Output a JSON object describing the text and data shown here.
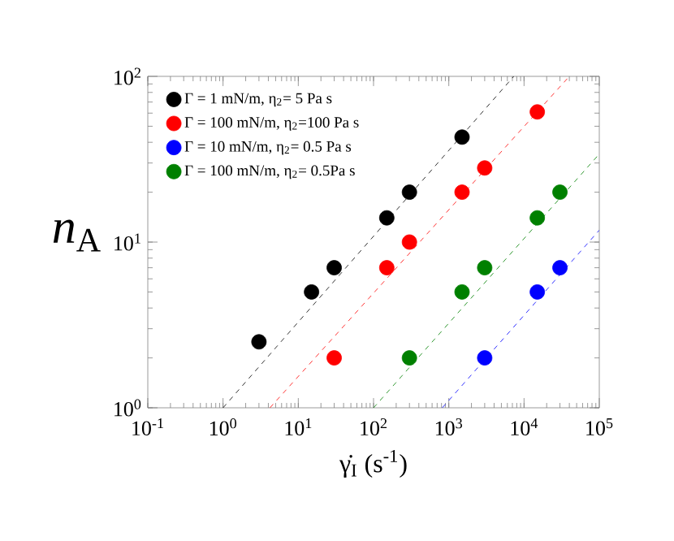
{
  "chart_data": {
    "type": "scatter",
    "xlabel": "γ̇$_{I}$ (s$^{-1}$)",
    "ylabel": "*n*$_{A}$",
    "log": "xy",
    "xlim": [
      0.1,
      100000
    ],
    "ylim": [
      1,
      100
    ],
    "xticks": [
      {
        "value": 0.1,
        "label": "10$^{-1}$"
      },
      {
        "value": 1,
        "label": "10$^{0}$"
      },
      {
        "value": 10,
        "label": "10$^{1}$"
      },
      {
        "value": 100,
        "label": "10$^{2}$"
      },
      {
        "value": 1000,
        "label": "10$^{3}$"
      },
      {
        "value": 10000,
        "label": "10$^{4}$"
      },
      {
        "value": 100000,
        "label": "10$^{5}$"
      }
    ],
    "yticks": [
      {
        "value": 1,
        "label": "10$^{0}$"
      },
      {
        "value": 10,
        "label": "10$^{1}$"
      },
      {
        "value": 100,
        "label": "10$^{2}$"
      }
    ],
    "legend": "top left",
    "grid": false,
    "series": [
      {
        "marker": "circle",
        "name": "Γ = 1 mN/m, η$_{2}$= 5 Pa s",
        "color": "#000000",
        "x": [
          3,
          15,
          30,
          150,
          300,
          1500
        ],
        "values": [
          2.5,
          5,
          7,
          14,
          20,
          43
        ]
      },
      {
        "marker": "circle",
        "name": "Γ = 100 mN/m, η$_{2}$=100 Pa s",
        "color": "#ff0000",
        "x": [
          30,
          150,
          300,
          1500,
          3000,
          15000
        ],
        "values": [
          2,
          7,
          10,
          20,
          28,
          61
        ]
      },
      {
        "marker": "circle",
        "name": "Γ = 10 mN/m, η$_{2}$= 0.5 Pa s",
        "color": "#0000ff",
        "x": [
          3000,
          15000,
          30000
        ],
        "values": [
          2,
          5,
          7
        ]
      },
      {
        "marker": "circle",
        "name": "Γ = 100 mN/m, η$_{2}$= 0.5Pa s",
        "color": "#008000",
        "x": [
          300,
          1500,
          3000,
          15000,
          30000
        ],
        "values": [
          2,
          5,
          7,
          14,
          20
        ]
      },
      {
        "type": "line",
        "marker": "none",
        "line_style": "dashed",
        "color": "#000000",
        "x": [
          1,
          7300
        ],
        "values": [
          1,
          100
        ]
      },
      {
        "type": "line",
        "marker": "none",
        "line_style": "dashed",
        "color": "#ff0000",
        "x": [
          4.2,
          40000
        ],
        "values": [
          1,
          100
        ]
      },
      {
        "type": "line",
        "marker": "none",
        "line_style": "dashed",
        "color": "#0000ff",
        "x": [
          820,
          100000
        ],
        "values": [
          1,
          11.8
        ]
      },
      {
        "type": "line",
        "marker": "none",
        "line_style": "dashed",
        "color": "#008000",
        "x": [
          100,
          100000
        ],
        "values": [
          1,
          34
        ]
      }
    ]
  }
}
